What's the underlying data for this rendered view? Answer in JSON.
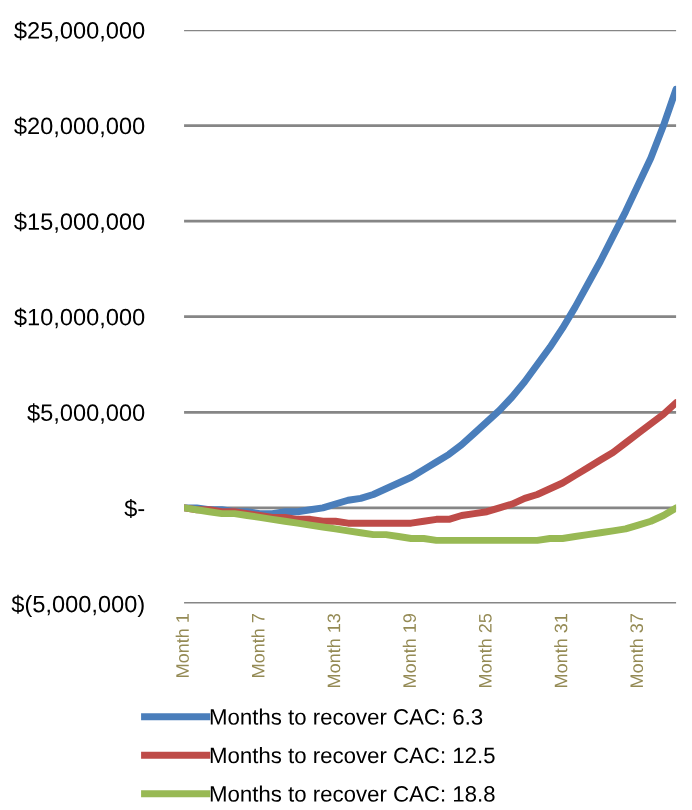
{
  "chart_data": {
    "type": "line",
    "categories": [
      "Month 1",
      null,
      null,
      null,
      null,
      null,
      "Month 7",
      null,
      null,
      null,
      null,
      null,
      "Month 13",
      null,
      null,
      null,
      null,
      null,
      "Month 19",
      null,
      null,
      null,
      null,
      null,
      "Month 25",
      null,
      null,
      null,
      null,
      null,
      "Month 31",
      null,
      null,
      null,
      null,
      null,
      "Month 37",
      null,
      null,
      null
    ],
    "series": [
      {
        "name": "Months to recover CAC: 6.3",
        "color": "#4a7ebb",
        "values": [
          0,
          0,
          -100000,
          -100000,
          -200000,
          -200000,
          -300000,
          -300000,
          -200000,
          -200000,
          -100000,
          0,
          200000,
          400000,
          500000,
          700000,
          1000000,
          1300000,
          1600000,
          2000000,
          2400000,
          2800000,
          3300000,
          3900000,
          4500000,
          5100000,
          5800000,
          6600000,
          7500000,
          8400000,
          9400000,
          10500000,
          11700000,
          12900000,
          14200000,
          15500000,
          16900000,
          18300000,
          20000000,
          21900000
        ]
      },
      {
        "name": "Months to recover CAC: 12.5",
        "color": "#be4b48",
        "values": [
          0,
          -100000,
          -100000,
          -200000,
          -200000,
          -300000,
          -400000,
          -500000,
          -500000,
          -600000,
          -600000,
          -700000,
          -700000,
          -800000,
          -800000,
          -800000,
          -800000,
          -800000,
          -800000,
          -700000,
          -600000,
          -600000,
          -400000,
          -300000,
          -200000,
          0,
          200000,
          500000,
          700000,
          1000000,
          1300000,
          1700000,
          2100000,
          2500000,
          2900000,
          3400000,
          3900000,
          4400000,
          4900000,
          5500000
        ]
      },
      {
        "name": "Months to recover CAC: 18.8",
        "color": "#98b954",
        "values": [
          0,
          -100000,
          -200000,
          -300000,
          -300000,
          -400000,
          -500000,
          -600000,
          -700000,
          -800000,
          -900000,
          -1000000,
          -1100000,
          -1200000,
          -1300000,
          -1400000,
          -1400000,
          -1500000,
          -1600000,
          -1600000,
          -1700000,
          -1700000,
          -1700000,
          -1700000,
          -1700000,
          -1700000,
          -1700000,
          -1700000,
          -1700000,
          -1600000,
          -1600000,
          -1500000,
          -1400000,
          -1300000,
          -1200000,
          -1100000,
          -900000,
          -700000,
          -400000,
          0
        ]
      }
    ],
    "ylim": [
      -5000000,
      25000000
    ],
    "yticks": [
      {
        "value": -5000000,
        "label": "$(5,000,000)"
      },
      {
        "value": 0,
        "label": "$-"
      },
      {
        "value": 5000000,
        "label": "$5,000,000"
      },
      {
        "value": 10000000,
        "label": "$10,000,000"
      },
      {
        "value": 15000000,
        "label": "$15,000,000"
      },
      {
        "value": 20000000,
        "label": "$20,000,000"
      },
      {
        "value": 25000000,
        "label": "$25,000,000"
      }
    ],
    "grid": "y",
    "legend": "bottom",
    "marker": "none",
    "line_style": "solid"
  }
}
